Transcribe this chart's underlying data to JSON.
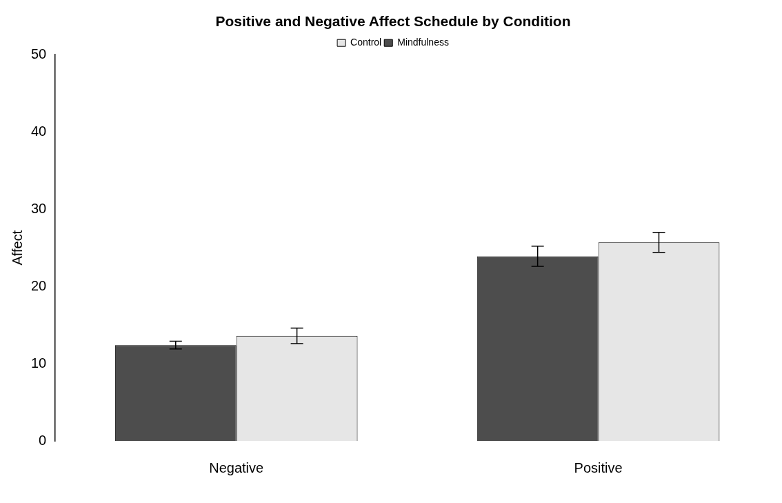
{
  "chart_data": {
    "type": "bar",
    "title": "Positive and Negative Affect Schedule by Condition",
    "ylabel": "Affect",
    "categories": [
      "Negative",
      "Positive"
    ],
    "series": [
      {
        "name": "Mindfulness",
        "color": "#4d4d4d",
        "values": [
          12.4,
          23.9
        ],
        "errors": [
          0.5,
          1.3
        ]
      },
      {
        "name": "Control",
        "color": "#e6e6e6",
        "values": [
          13.6,
          25.7
        ],
        "errors": [
          1.0,
          1.3
        ]
      }
    ],
    "ylim": [
      0,
      50
    ],
    "yticks": [
      0,
      10,
      20,
      30,
      40,
      50
    ],
    "grid": false,
    "legend": "top"
  }
}
